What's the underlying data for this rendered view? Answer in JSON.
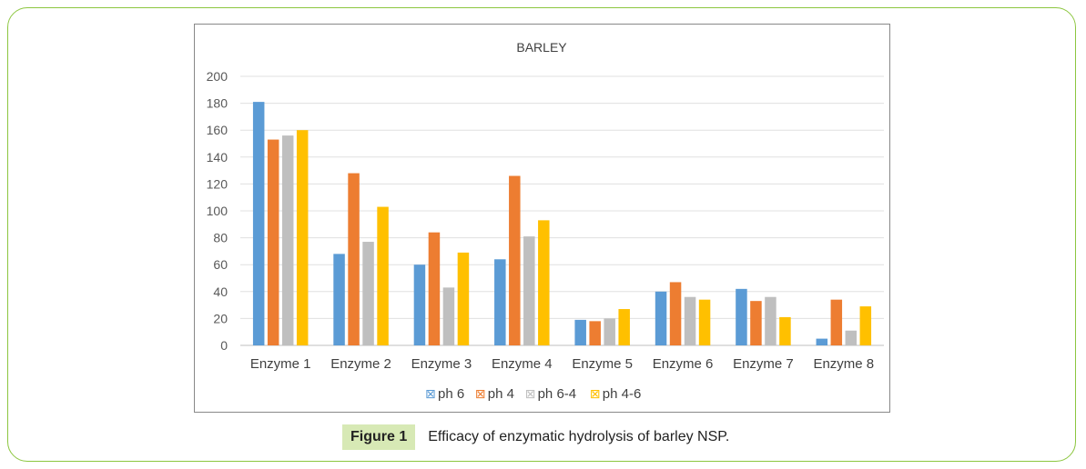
{
  "chart_data": {
    "type": "bar",
    "title": "BARLEY",
    "categories": [
      "Enzyme 1",
      "Enzyme 2",
      "Enzyme 3",
      "Enzyme 4",
      "Enzyme 5",
      "Enzyme 6",
      "Enzyme 7",
      "Enzyme 8"
    ],
    "series": [
      {
        "name": "ph 6",
        "color": "#5b9bd5",
        "values": [
          181,
          68,
          60,
          64,
          19,
          40,
          42,
          5
        ]
      },
      {
        "name": "ph 4",
        "color": "#ed7d31",
        "values": [
          153,
          128,
          84,
          126,
          18,
          47,
          33,
          34
        ]
      },
      {
        "name": "ph 6-4",
        "color": "#bfbfbf",
        "values": [
          156,
          77,
          43,
          81,
          20,
          36,
          36,
          11
        ]
      },
      {
        "name": "ph 4-6",
        "color": "#ffc000",
        "values": [
          160,
          103,
          69,
          93,
          27,
          34,
          21,
          29
        ]
      }
    ],
    "ylim": [
      0,
      200
    ],
    "yticks": [
      0,
      20,
      40,
      60,
      80,
      100,
      120,
      140,
      160,
      180,
      200
    ],
    "grid": true,
    "legend_position": "bottom",
    "legend_marker": "⊠"
  },
  "caption": {
    "label": "Figure 1",
    "text": "Efficacy of enzymatic hydrolysis of barley NSP."
  }
}
